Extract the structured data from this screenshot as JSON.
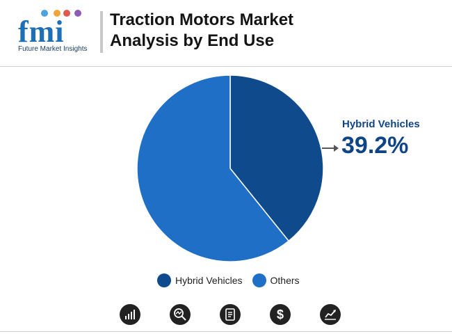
{
  "header": {
    "title_line1": "Traction Motors Market",
    "title_line2": "Analysis by End Use",
    "logo_text": "fmi",
    "logo_subtext": "Future Market Insights"
  },
  "colors": {
    "hybrid": "#0f4b8c",
    "others": "#1f6fc6",
    "callout_text": "#0f4587"
  },
  "chart_data": {
    "type": "pie",
    "categories": [
      "Hybrid Vehicles",
      "Others"
    ],
    "values": [
      39.2,
      60.8
    ],
    "unit": "%",
    "legend_placement": "bottom",
    "callout": {
      "label": "Hybrid Vehicles",
      "value": "39.2%"
    }
  },
  "legend": [
    {
      "label": "Hybrid Vehicles",
      "color": "#0f4b8c"
    },
    {
      "label": "Others",
      "color": "#1f6fc6"
    }
  ],
  "footer_icons": [
    "bar-chart-icon",
    "magnifier-chart-icon",
    "document-icon",
    "dollar-icon",
    "line-chart-icon"
  ]
}
